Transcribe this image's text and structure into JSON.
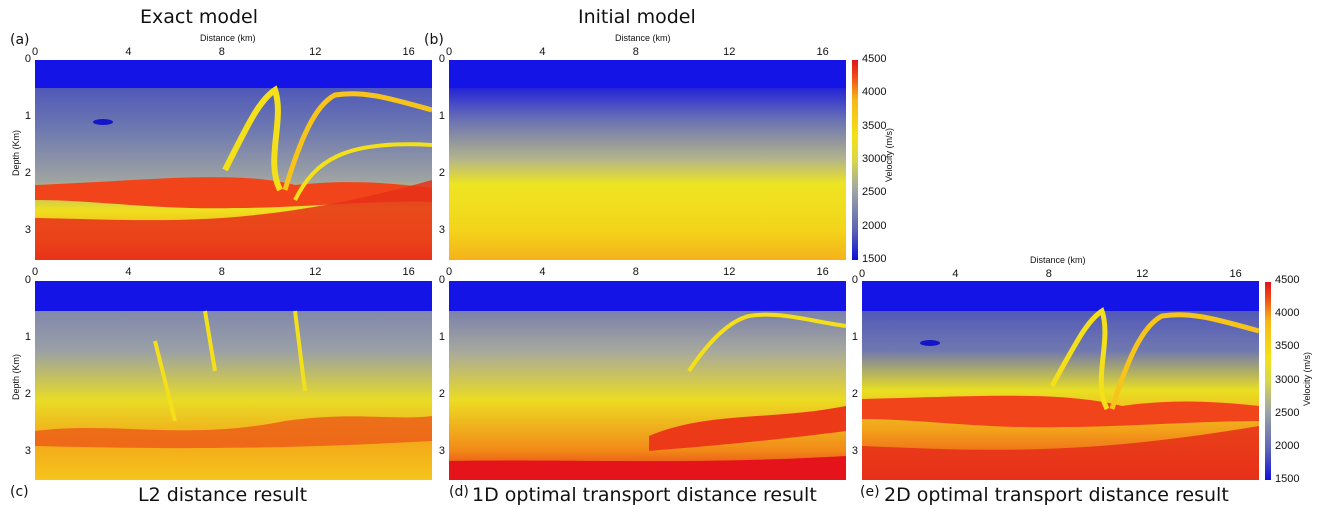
{
  "chart_data": [
    {
      "type": "heatmap",
      "panel": "(a)",
      "title": "Exact model",
      "xlabel": "Distance (km)",
      "ylabel": "Depth (Km)",
      "x_ticks": [
        "0",
        "4",
        "8",
        "12",
        "16"
      ],
      "y_ticks": [
        "0",
        "1",
        "2",
        "3"
      ],
      "xlim": [
        0,
        17
      ],
      "ylim": [
        3.5,
        0
      ]
    },
    {
      "type": "heatmap",
      "panel": "(b)",
      "title": "Initial model",
      "xlabel": "Distance (km)",
      "x_ticks": [
        "0",
        "4",
        "8",
        "12",
        "16"
      ],
      "y_ticks": [
        "0",
        "1",
        "2",
        "3"
      ],
      "colorbar": {
        "label": "Velocity (m/s)",
        "ticks": [
          "4500",
          "4000",
          "3500",
          "3000",
          "2500",
          "2000",
          "1500"
        ],
        "range": [
          1500,
          4500
        ]
      }
    },
    {
      "type": "heatmap",
      "panel": "(c)",
      "title": "L2 distance result",
      "ylabel": "Depth (Km)",
      "x_ticks": [
        "0",
        "4",
        "8",
        "12",
        "16"
      ],
      "y_ticks": [
        "0",
        "1",
        "2",
        "3"
      ]
    },
    {
      "type": "heatmap",
      "panel": "(d)",
      "title": "1D optimal transport distance result",
      "x_ticks": [
        "0",
        "4",
        "8",
        "12",
        "16"
      ],
      "y_ticks": [
        "0",
        "1",
        "2",
        "3"
      ]
    },
    {
      "type": "heatmap",
      "panel": "(e)",
      "title": "2D optimal transport distance result",
      "xlabel": "Distance (km)",
      "x_ticks": [
        "0",
        "4",
        "8",
        "12",
        "16"
      ],
      "y_ticks": [
        "0",
        "1",
        "2",
        "3"
      ],
      "colorbar": {
        "label": "Velocity (m/s)",
        "ticks": [
          "4500",
          "4000",
          "3500",
          "3000",
          "2500",
          "2000",
          "1500"
        ],
        "range": [
          1500,
          4500
        ]
      }
    }
  ]
}
